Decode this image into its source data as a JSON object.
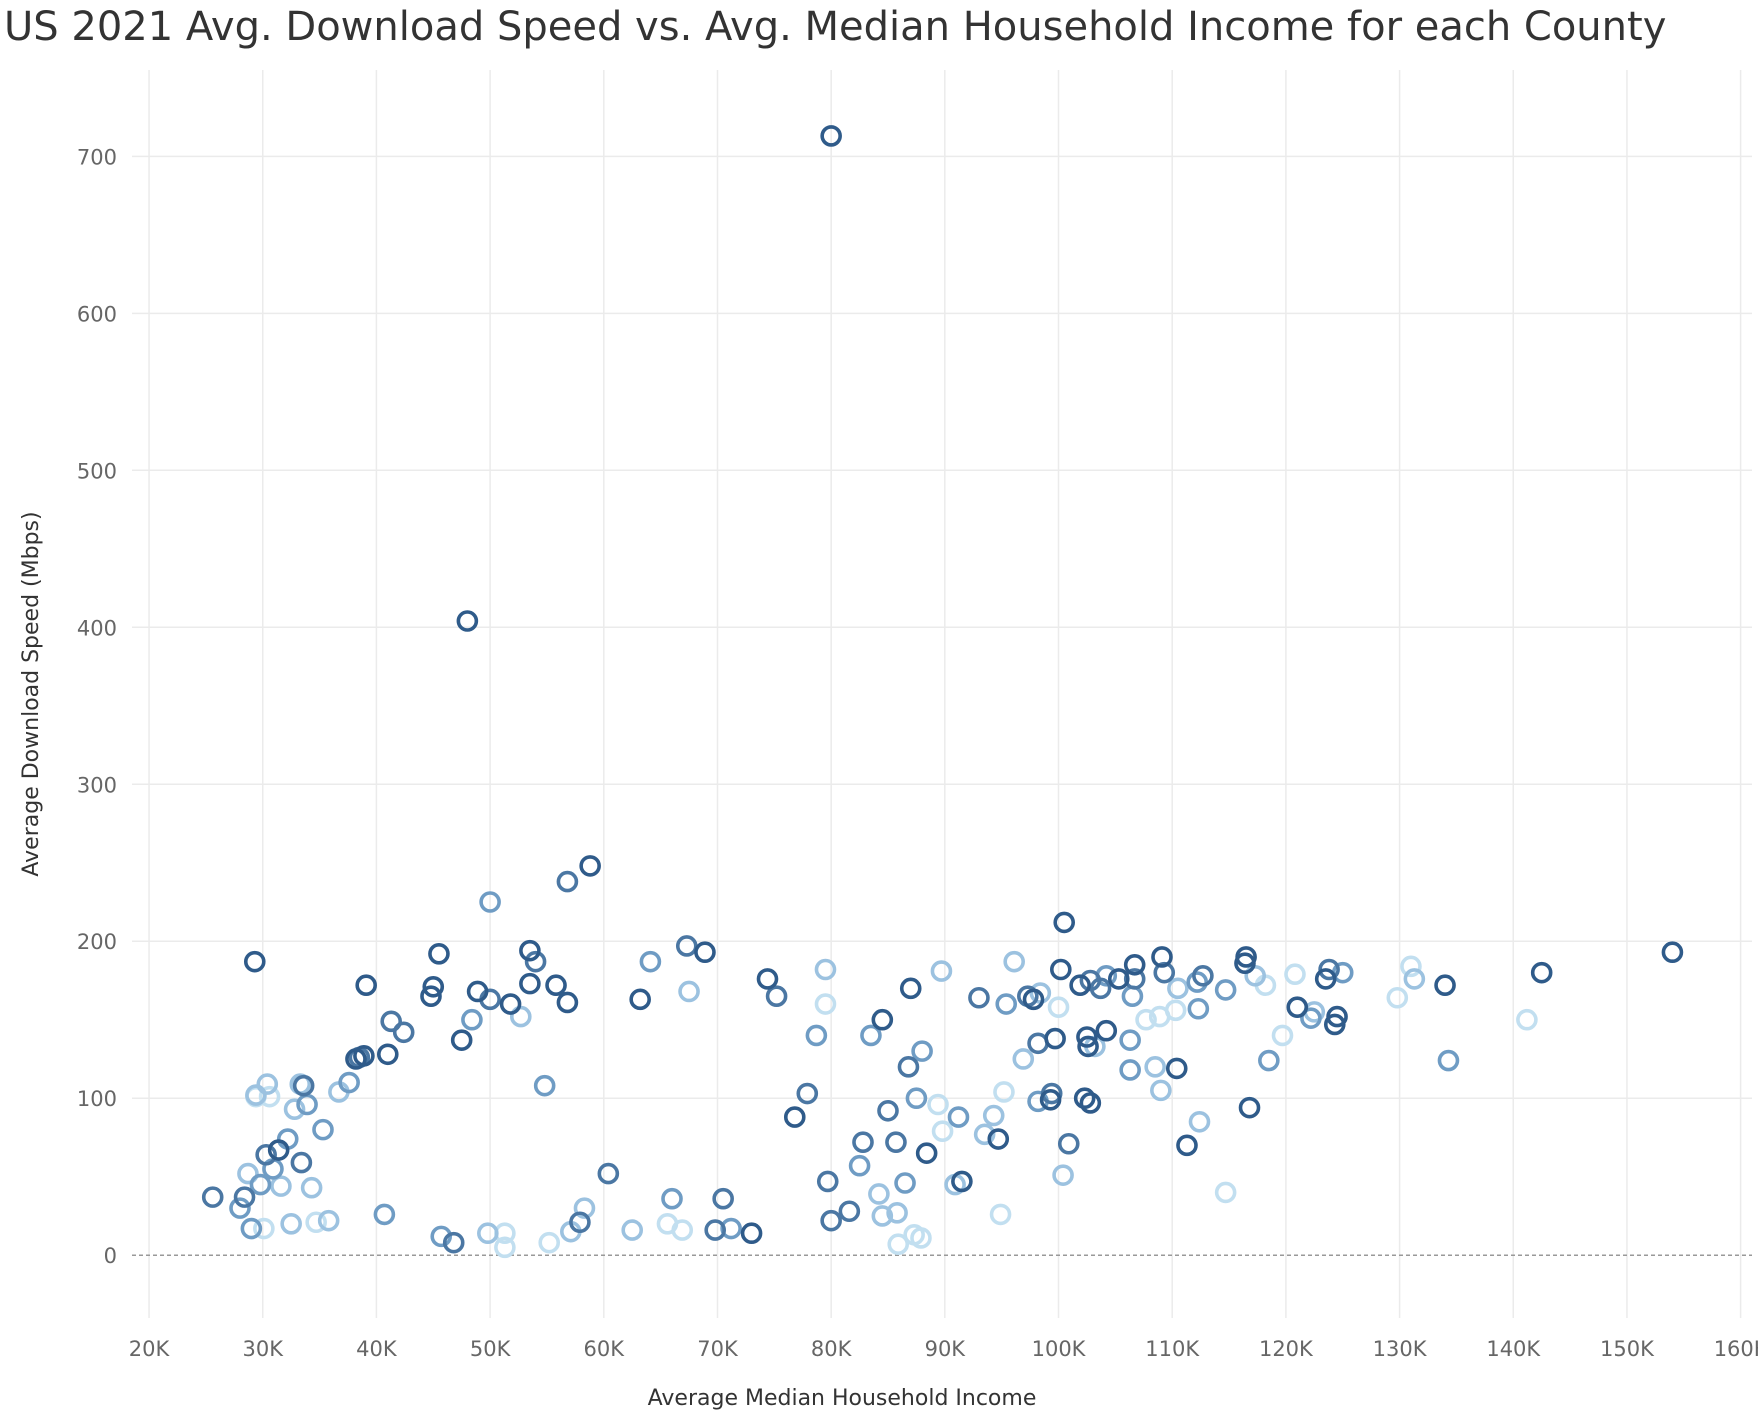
{
  "chart_data": {
    "type": "scatter",
    "title": "US 2021 Avg. Download Speed vs. Avg. Median Household Income for each County",
    "xlabel": "Average Median Household Income",
    "ylabel": "Average Download Speed (Mbps)",
    "xlim": [
      18500,
      161000
    ],
    "ylim": [
      -40,
      755
    ],
    "x_ticks": [
      20000,
      30000,
      40000,
      50000,
      60000,
      70000,
      80000,
      90000,
      100000,
      110000,
      120000,
      130000,
      140000,
      150000,
      160000
    ],
    "x_tick_labels": [
      "20K",
      "30K",
      "40K",
      "50K",
      "60K",
      "70K",
      "80K",
      "90K",
      "100K",
      "110K",
      "120K",
      "130K",
      "140K",
      "150K",
      "160K"
    ],
    "y_ticks": [
      0,
      100,
      200,
      300,
      400,
      500,
      600,
      700
    ],
    "y_tick_labels": [
      "0",
      "100",
      "200",
      "300",
      "400",
      "500",
      "600",
      "700"
    ],
    "grid": true,
    "marker": "hollow-circle",
    "color_shades": [
      "#2f5b8a",
      "#4b77a3",
      "#6f9cc4",
      "#9cc2e0",
      "#c2dff0"
    ],
    "points": [
      [
        80000,
        713,
        0
      ],
      [
        48000,
        404,
        0
      ],
      [
        58800,
        248,
        0
      ],
      [
        56800,
        238,
        1
      ],
      [
        50000,
        225,
        2
      ],
      [
        29300,
        187,
        0
      ],
      [
        100500,
        212,
        0
      ],
      [
        154000,
        193,
        0
      ],
      [
        142500,
        180,
        0
      ],
      [
        134000,
        172,
        0
      ],
      [
        134300,
        124,
        2
      ],
      [
        131000,
        184,
        4
      ],
      [
        131300,
        176,
        3
      ],
      [
        129800,
        164,
        4
      ],
      [
        141200,
        150,
        4
      ],
      [
        125000,
        180,
        2
      ],
      [
        123800,
        182,
        1
      ],
      [
        123500,
        176,
        0
      ],
      [
        124300,
        147,
        0
      ],
      [
        124500,
        152,
        0
      ],
      [
        122500,
        155,
        3
      ],
      [
        122200,
        151,
        2
      ],
      [
        121000,
        158,
        0
      ],
      [
        120800,
        179,
        4
      ],
      [
        119700,
        140,
        4
      ],
      [
        118500,
        124,
        2
      ],
      [
        118200,
        172,
        4
      ],
      [
        117300,
        178,
        3
      ],
      [
        116500,
        190,
        0
      ],
      [
        116400,
        186,
        0
      ],
      [
        116800,
        94,
        0
      ],
      [
        114700,
        169,
        2
      ],
      [
        114700,
        40,
        4
      ],
      [
        112300,
        157,
        2
      ],
      [
        112400,
        85,
        3
      ],
      [
        111300,
        70,
        0
      ],
      [
        112700,
        178,
        1
      ],
      [
        112200,
        174,
        2
      ],
      [
        110400,
        119,
        0
      ],
      [
        110500,
        170,
        3
      ],
      [
        110300,
        156,
        4
      ],
      [
        109300,
        180,
        1
      ],
      [
        109100,
        190,
        0
      ],
      [
        108900,
        152,
        4
      ],
      [
        109000,
        105,
        3
      ],
      [
        108500,
        120,
        3
      ],
      [
        107700,
        150,
        4
      ],
      [
        106700,
        185,
        0
      ],
      [
        106700,
        176,
        1
      ],
      [
        106500,
        165,
        2
      ],
      [
        106300,
        137,
        2
      ],
      [
        106300,
        118,
        2
      ],
      [
        105300,
        176,
        0
      ],
      [
        104200,
        178,
        2
      ],
      [
        104200,
        143,
        0
      ],
      [
        103700,
        170,
        1
      ],
      [
        103200,
        133,
        3
      ],
      [
        102800,
        175,
        1
      ],
      [
        102600,
        133,
        0
      ],
      [
        102500,
        139,
        0
      ],
      [
        102800,
        97,
        0
      ],
      [
        102300,
        100,
        0
      ],
      [
        101900,
        172,
        0
      ],
      [
        100900,
        71,
        1
      ],
      [
        100400,
        51,
        3
      ],
      [
        100200,
        182,
        0
      ],
      [
        100000,
        158,
        4
      ],
      [
        99700,
        138,
        0
      ],
      [
        99400,
        103,
        1
      ],
      [
        99300,
        99,
        0
      ],
      [
        98200,
        135,
        1
      ],
      [
        98200,
        98,
        2
      ],
      [
        98400,
        167,
        3
      ],
      [
        97800,
        163,
        0
      ],
      [
        97300,
        165,
        1
      ],
      [
        96900,
        125,
        3
      ],
      [
        96100,
        187,
        3
      ],
      [
        95400,
        160,
        2
      ],
      [
        94900,
        26,
        4
      ],
      [
        95200,
        104,
        4
      ],
      [
        94700,
        74,
        0
      ],
      [
        94300,
        89,
        3
      ],
      [
        93500,
        77,
        3
      ],
      [
        93000,
        164,
        1
      ],
      [
        91500,
        47,
        0
      ],
      [
        91200,
        88,
        2
      ],
      [
        90900,
        45,
        3
      ],
      [
        89700,
        181,
        3
      ],
      [
        89800,
        79,
        4
      ],
      [
        89400,
        96,
        4
      ],
      [
        88400,
        65,
        0
      ],
      [
        88000,
        130,
        2
      ],
      [
        87900,
        11,
        4
      ],
      [
        87300,
        13,
        4
      ],
      [
        87000,
        170,
        0
      ],
      [
        86500,
        46,
        2
      ],
      [
        85700,
        72,
        1
      ],
      [
        85800,
        27,
        3
      ],
      [
        85900,
        7,
        4
      ],
      [
        84500,
        25,
        3
      ],
      [
        84200,
        39,
        3
      ],
      [
        86800,
        120,
        1
      ],
      [
        87500,
        100,
        2
      ],
      [
        85000,
        92,
        1
      ],
      [
        84500,
        150,
        0
      ],
      [
        83500,
        140,
        2
      ],
      [
        82800,
        72,
        1
      ],
      [
        82500,
        57,
        2
      ],
      [
        81600,
        28,
        1
      ],
      [
        80000,
        22,
        1
      ],
      [
        79700,
        47,
        1
      ],
      [
        79500,
        182,
        3
      ],
      [
        79500,
        160,
        4
      ],
      [
        78700,
        140,
        2
      ],
      [
        77900,
        103,
        1
      ],
      [
        76800,
        88,
        0
      ],
      [
        75200,
        165,
        1
      ],
      [
        74400,
        176,
        0
      ],
      [
        73000,
        14,
        0
      ],
      [
        71200,
        17,
        2
      ],
      [
        70500,
        36,
        1
      ],
      [
        69800,
        16,
        1
      ],
      [
        68900,
        193,
        0
      ],
      [
        67500,
        168,
        3
      ],
      [
        67300,
        197,
        1
      ],
      [
        66900,
        16,
        4
      ],
      [
        66000,
        36,
        2
      ],
      [
        65600,
        20,
        4
      ],
      [
        64100,
        187,
        2
      ],
      [
        63200,
        163,
        0
      ],
      [
        62500,
        16,
        3
      ],
      [
        60400,
        52,
        1
      ],
      [
        58300,
        30,
        3
      ],
      [
        57900,
        21,
        1
      ],
      [
        57100,
        15,
        3
      ],
      [
        56800,
        161,
        0
      ],
      [
        55800,
        172,
        0
      ],
      [
        55200,
        8,
        4
      ],
      [
        54800,
        108,
        2
      ],
      [
        54000,
        187,
        1
      ],
      [
        53500,
        194,
        0
      ],
      [
        53500,
        173,
        0
      ],
      [
        52700,
        152,
        3
      ],
      [
        51800,
        160,
        0
      ],
      [
        51300,
        14,
        4
      ],
      [
        51300,
        5,
        4
      ],
      [
        50000,
        163,
        1
      ],
      [
        49800,
        14,
        3
      ],
      [
        48900,
        168,
        0
      ],
      [
        48400,
        150,
        2
      ],
      [
        47500,
        137,
        0
      ],
      [
        46800,
        8,
        1
      ],
      [
        45700,
        12,
        2
      ],
      [
        45500,
        192,
        0
      ],
      [
        45000,
        171,
        0
      ],
      [
        44800,
        165,
        0
      ],
      [
        42400,
        142,
        1
      ],
      [
        41300,
        149,
        1
      ],
      [
        41000,
        128,
        0
      ],
      [
        40700,
        26,
        2
      ],
      [
        39100,
        172,
        0
      ],
      [
        38900,
        127,
        0
      ],
      [
        38500,
        126,
        1
      ],
      [
        38200,
        125,
        0
      ],
      [
        37600,
        110,
        2
      ],
      [
        36700,
        104,
        3
      ],
      [
        35800,
        22,
        3
      ],
      [
        35300,
        80,
        2
      ],
      [
        34700,
        21,
        4
      ],
      [
        34300,
        43,
        3
      ],
      [
        33900,
        96,
        2
      ],
      [
        33600,
        108,
        1
      ],
      [
        33400,
        59,
        1
      ],
      [
        33300,
        109,
        3
      ],
      [
        32800,
        93,
        3
      ],
      [
        32500,
        20,
        3
      ],
      [
        32200,
        74,
        2
      ],
      [
        31600,
        44,
        3
      ],
      [
        31400,
        67,
        0
      ],
      [
        30900,
        55,
        2
      ],
      [
        30600,
        101,
        4
      ],
      [
        30400,
        109,
        3
      ],
      [
        30300,
        64,
        1
      ],
      [
        30100,
        17,
        4
      ],
      [
        29800,
        45,
        2
      ],
      [
        29400,
        101,
        4
      ],
      [
        29400,
        102,
        3
      ],
      [
        29000,
        17,
        2
      ],
      [
        28700,
        52,
        3
      ],
      [
        28400,
        37,
        1
      ],
      [
        28000,
        30,
        2
      ],
      [
        25600,
        37,
        1
      ]
    ]
  }
}
